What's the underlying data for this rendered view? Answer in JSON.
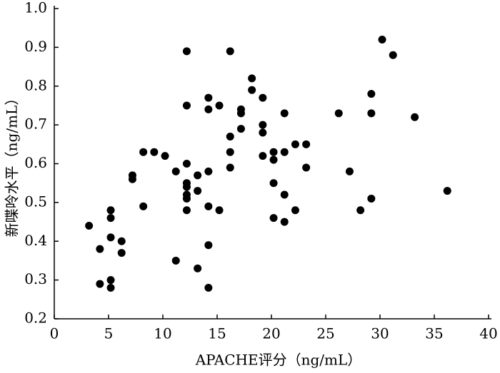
{
  "chart_data": {
    "type": "scatter",
    "x_label": "APACHE评分（ng/mL）",
    "y_label": "新喋呤水平（ng/mL）",
    "color": "#000000",
    "xlim": [
      0,
      40
    ],
    "xticks": [
      0,
      5,
      10,
      15,
      20,
      25,
      30,
      35,
      40
    ],
    "ylim": [
      0.2,
      1.0
    ],
    "yticks": [
      0.2,
      0.3,
      0.4,
      0.5,
      0.6,
      0.7,
      0.8,
      0.9,
      {
        "value": 1,
        "label": "1.0"
      }
    ],
    "x": [
      3.2,
      4.2,
      4.2,
      5.2,
      5.2,
      5.2,
      5.2,
      5.2,
      6.2,
      6.2,
      7.2,
      7.2,
      8.2,
      8.2,
      9.2,
      10.2,
      11.2,
      11.2,
      12.2,
      12.2,
      12.2,
      12.2,
      12.2,
      12.2,
      12.2,
      12.2,
      13.2,
      13.2,
      13.2,
      14.2,
      14.2,
      14.2,
      14.2,
      14.2,
      14.2,
      15.2,
      15.2,
      16.2,
      16.2,
      16.2,
      16.2,
      17.2,
      17.2,
      17.2,
      18.2,
      18.2,
      19.2,
      19.2,
      19.2,
      19.2,
      20.2,
      20.2,
      20.2,
      20.2,
      21.2,
      21.2,
      21.2,
      21.2,
      22.2,
      22.2,
      23.2,
      23.2,
      26.2,
      27.2,
      28.2,
      29.2,
      29.2,
      29.2,
      30.2,
      31.2,
      33.2,
      36.2
    ],
    "values": [
      0.44,
      0.38,
      0.29,
      0.48,
      0.46,
      0.41,
      0.3,
      0.28,
      0.4,
      0.37,
      0.57,
      0.56,
      0.49,
      0.63,
      0.63,
      0.62,
      0.58,
      0.35,
      0.89,
      0.75,
      0.6,
      0.55,
      0.54,
      0.52,
      0.51,
      0.48,
      0.57,
      0.53,
      0.33,
      0.77,
      0.74,
      0.58,
      0.49,
      0.39,
      0.28,
      0.75,
      0.48,
      0.89,
      0.67,
      0.63,
      0.59,
      0.74,
      0.73,
      0.69,
      0.82,
      0.79,
      0.77,
      0.7,
      0.68,
      0.62,
      0.63,
      0.61,
      0.55,
      0.46,
      0.73,
      0.63,
      0.52,
      0.45,
      0.65,
      0.48,
      0.65,
      0.59,
      0.73,
      0.58,
      0.48,
      0.78,
      0.73,
      0.51,
      0.92,
      0.88,
      0.72,
      0.53
    ]
  }
}
